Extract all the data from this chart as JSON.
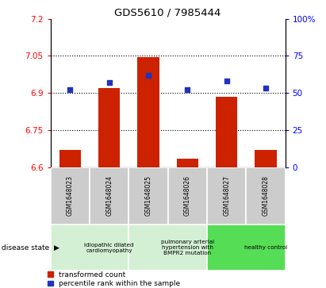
{
  "title": "GDS5610 / 7985444",
  "samples": [
    "GSM1648023",
    "GSM1648024",
    "GSM1648025",
    "GSM1648026",
    "GSM1648027",
    "GSM1648028"
  ],
  "bar_values": [
    6.67,
    6.92,
    7.045,
    6.635,
    6.885,
    6.67
  ],
  "percentile_values": [
    52,
    57,
    62,
    52,
    58,
    53
  ],
  "ylim_left": [
    6.6,
    7.2
  ],
  "ylim_right": [
    0,
    100
  ],
  "yticks_left": [
    6.6,
    6.75,
    6.9,
    7.05,
    7.2
  ],
  "ytick_labels_left": [
    "6.6",
    "6.75",
    "6.9",
    "7.05",
    "7.2"
  ],
  "yticks_right": [
    0,
    25,
    50,
    75,
    100
  ],
  "ytick_labels_right": [
    "0",
    "25",
    "50",
    "75",
    "100%"
  ],
  "hlines": [
    6.75,
    6.9,
    7.05
  ],
  "bar_color": "#cc2200",
  "dot_color": "#2233bb",
  "bar_base": 6.6,
  "disease_groups": [
    {
      "label": "idiopathic dilated\ncardiomyopathy",
      "start": 0,
      "end": 2,
      "color": "#d4f0d4"
    },
    {
      "label": "pulmonary arterial\nhypertension with\nBMPR2 mutation",
      "start": 2,
      "end": 4,
      "color": "#d4f0d4"
    },
    {
      "label": "healthy control",
      "start": 4,
      "end": 6,
      "color": "#55dd55"
    }
  ],
  "legend_bar_label": "transformed count",
  "legend_dot_label": "percentile rank within the sample",
  "disease_state_label": "disease state",
  "sample_bg": "#cccccc",
  "plot_bg": "#ffffff"
}
